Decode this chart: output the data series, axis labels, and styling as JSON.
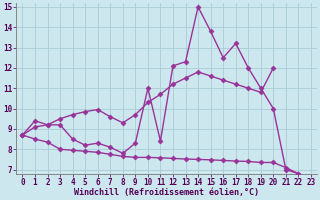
{
  "xlabel": "Windchill (Refroidissement éolien,°C)",
  "bg_color": "#cce8ee",
  "grid_color": "#aaccd4",
  "line_color": "#993399",
  "xlim": [
    -0.5,
    23.5
  ],
  "ylim": [
    6.8,
    15.2
  ],
  "yticks": [
    7,
    8,
    9,
    10,
    11,
    12,
    13,
    14,
    15
  ],
  "xticks": [
    0,
    1,
    2,
    3,
    4,
    5,
    6,
    7,
    8,
    9,
    10,
    11,
    12,
    13,
    14,
    15,
    16,
    17,
    18,
    19,
    20,
    21,
    22,
    23
  ],
  "series": [
    {
      "x": [
        0,
        1,
        2,
        3,
        4,
        5,
        6,
        7,
        8,
        9,
        10,
        11,
        12,
        13,
        14,
        15,
        16,
        17,
        18,
        19,
        20,
        21,
        22
      ],
      "y": [
        8.7,
        9.4,
        9.2,
        9.2,
        8.5,
        8.2,
        8.3,
        8.1,
        7.8,
        8.3,
        11.0,
        8.4,
        12.1,
        12.3,
        15.0,
        13.8,
        12.5,
        13.2,
        12.0,
        11.0,
        10.0,
        7.0,
        6.8
      ]
    },
    {
      "x": [
        0,
        1,
        2,
        3,
        4,
        5,
        6,
        7,
        8,
        9,
        10,
        11,
        12,
        13,
        14,
        15,
        16,
        17,
        18,
        19,
        20
      ],
      "y": [
        8.7,
        9.1,
        9.2,
        9.5,
        9.7,
        9.85,
        9.95,
        9.6,
        9.3,
        9.7,
        10.3,
        10.7,
        11.2,
        11.5,
        11.8,
        11.6,
        11.4,
        11.2,
        11.0,
        10.8,
        12.0
      ]
    },
    {
      "x": [
        0,
        1,
        2,
        3,
        4,
        5,
        6,
        7,
        8,
        9,
        10,
        11,
        12,
        13,
        14,
        15,
        16,
        17,
        18,
        19,
        20,
        21,
        22
      ],
      "y": [
        8.7,
        8.5,
        8.35,
        8.0,
        7.95,
        7.9,
        7.85,
        7.75,
        7.65,
        7.6,
        7.6,
        7.58,
        7.55,
        7.52,
        7.5,
        7.48,
        7.45,
        7.42,
        7.4,
        7.35,
        7.35,
        7.1,
        6.8
      ]
    }
  ],
  "marker": "D",
  "marker_size": 2.5,
  "line_width": 1.0,
  "tick_fontsize": 5.5,
  "xlabel_fontsize": 6.0
}
